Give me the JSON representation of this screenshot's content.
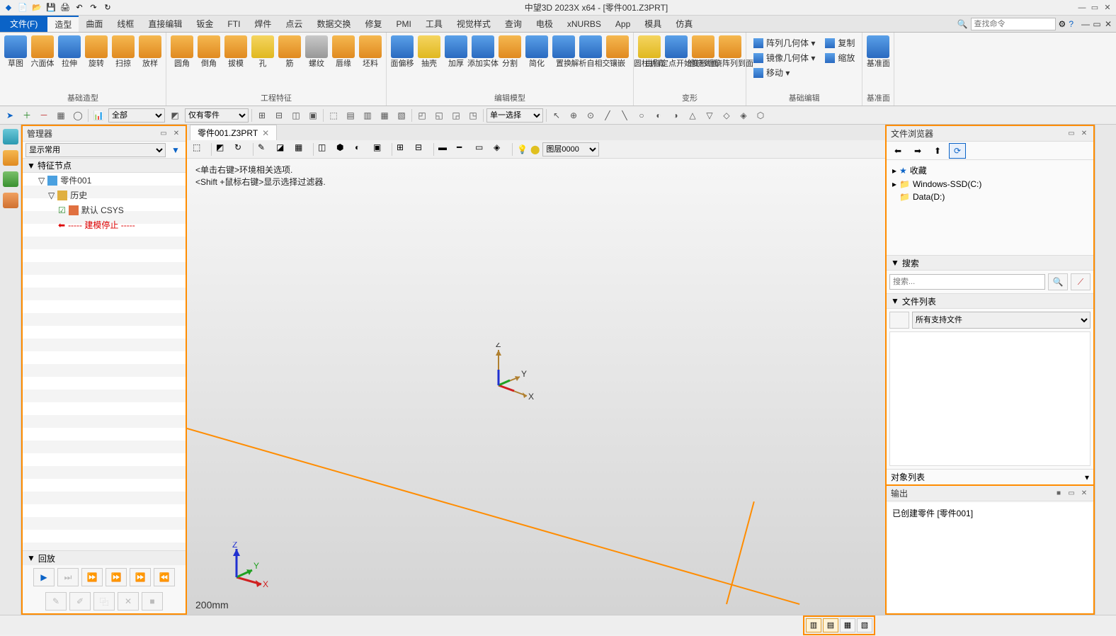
{
  "window": {
    "title": "中望3D 2023X x64 - [零件001.Z3PRT]"
  },
  "qat": [
    "🛡",
    "📄",
    "📂",
    "💾",
    "📋",
    "🖨",
    "↶",
    "↷",
    "🔄"
  ],
  "menubar": {
    "file": "文件(F)",
    "tabs": [
      "造型",
      "曲面",
      "线框",
      "直接编辑",
      "钣金",
      "FTI",
      "焊件",
      "点云",
      "数据交换",
      "修复",
      "PMI",
      "工具",
      "视觉样式",
      "查询",
      "电极",
      "xNURBS",
      "App",
      "模具",
      "仿真"
    ],
    "active_tab": "造型",
    "search_placeholder": "查找命令"
  },
  "ribbon": {
    "groups": [
      {
        "name": "基础造型",
        "buttons": [
          {
            "label": "草图",
            "color": "ic-blue"
          },
          {
            "label": "六面体",
            "color": "ic-orange"
          },
          {
            "label": "拉伸",
            "color": "ic-blue"
          },
          {
            "label": "旋转",
            "color": "ic-orange"
          },
          {
            "label": "扫掠",
            "color": "ic-orange"
          },
          {
            "label": "放样",
            "color": "ic-orange"
          }
        ]
      },
      {
        "name": "工程特征",
        "buttons": [
          {
            "label": "圆角",
            "color": "ic-orange"
          },
          {
            "label": "倒角",
            "color": "ic-orange"
          },
          {
            "label": "拔模",
            "color": "ic-orange"
          },
          {
            "label": "孔",
            "color": "ic-yellow"
          },
          {
            "label": "筋",
            "color": "ic-orange"
          },
          {
            "label": "螺纹",
            "color": "ic-grey"
          },
          {
            "label": "唇缘",
            "color": "ic-orange"
          },
          {
            "label": "坯料",
            "color": "ic-orange"
          }
        ]
      },
      {
        "name": "编辑模型",
        "buttons": [
          {
            "label": "面偏移",
            "color": "ic-blue"
          },
          {
            "label": "抽壳",
            "color": "ic-yellow"
          },
          {
            "label": "加厚",
            "color": "ic-blue"
          },
          {
            "label": "添加实体",
            "color": "ic-blue"
          },
          {
            "label": "分割",
            "color": "ic-orange"
          },
          {
            "label": "简化",
            "color": "ic-blue"
          },
          {
            "label": "置换",
            "color": "ic-blue"
          },
          {
            "label": "解析自相交",
            "color": "ic-blue"
          },
          {
            "label": "镶嵌",
            "color": "ic-orange"
          }
        ]
      },
      {
        "name": "变形",
        "buttons": [
          {
            "label": "圆柱折弯",
            "color": "ic-yellow"
          },
          {
            "label": "由指定点开始变形",
            "color": "ic-blue"
          },
          {
            "label": "缠绕到面",
            "color": "ic-orange"
          },
          {
            "label": "缠绕阵列到面",
            "color": "ic-orange"
          }
        ]
      },
      {
        "name": "基础编辑",
        "list": [
          {
            "label": "阵列几何体",
            "dd": true
          },
          {
            "label": "复制",
            "dd": false
          },
          {
            "label": "镜像几何体",
            "dd": true
          },
          {
            "label": "缩放",
            "dd": false
          },
          {
            "label": "移动",
            "dd": true
          }
        ]
      },
      {
        "name": "基准面",
        "buttons": [
          {
            "label": "基准面",
            "color": "ic-blue"
          }
        ]
      }
    ]
  },
  "toolbar2": {
    "filter1_label": "全部",
    "filter2_label": "仅有零件",
    "select_mode": "单一选择"
  },
  "manager": {
    "title": "管理器",
    "display_mode": "显示常用",
    "section": "特征节点",
    "tree": {
      "root": "零件001",
      "history": "历史",
      "csys": "默认 CSYS",
      "stop": "----- 建模停止 -----"
    },
    "playback": {
      "title": "回放"
    }
  },
  "doc_tab": {
    "name": "零件001.Z3PRT"
  },
  "viewport": {
    "hint1": "<单击右键>环境相关选项.",
    "hint2": "<Shift +鼠标右键>显示选择过滤器.",
    "scale": "200mm",
    "layer": "图层0000",
    "axes": {
      "x": "X",
      "y": "Y",
      "z": "Z"
    },
    "axis_colors": {
      "x": "#d02020",
      "y": "#20a020",
      "z": "#2030d0",
      "iso": "#b08030"
    }
  },
  "filebrowser": {
    "title": "文件浏览器",
    "favorites": "收藏",
    "drives": [
      "Windows-SSD(C:)",
      "Data(D:)"
    ],
    "search_section": "搜索",
    "search_placeholder": "搜索...",
    "filelist_section": "文件列表",
    "filter": "所有支持文件",
    "objlist": "对象列表"
  },
  "output": {
    "title": "输出",
    "line1": "已创建零件 [零件001]"
  },
  "colors": {
    "accent": "#0b63c7",
    "highlight": "#ff8c00"
  }
}
